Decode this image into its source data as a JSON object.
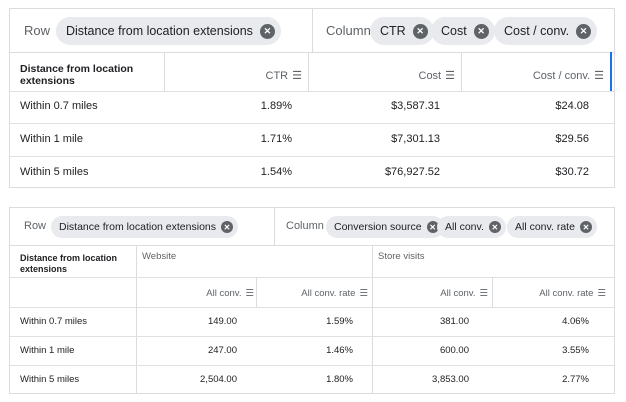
{
  "top": {
    "row_label": "Row",
    "row_chip": "Distance from location extensions",
    "column_label": "Column",
    "column_chips": [
      "CTR",
      "Cost",
      "Cost / conv."
    ],
    "chip_close_glyph": "✕",
    "headers": {
      "dimension": "Distance from location extensions",
      "ctr": "CTR",
      "cost": "Cost",
      "cost_per_conv": "Cost / conv."
    },
    "filter_glyph": "☰",
    "rows": [
      {
        "label": "Within 0.7 miles",
        "ctr": "1.89%",
        "cost": "$3,587.31",
        "cost_per_conv": "$24.08"
      },
      {
        "label": "Within 1 mile",
        "ctr": "1.71%",
        "cost": "$7,301.13",
        "cost_per_conv": "$29.56"
      },
      {
        "label": "Within 5 miles",
        "ctr": "1.54%",
        "cost": "$76,927.52",
        "cost_per_conv": "$30.72"
      }
    ]
  },
  "bottom": {
    "row_label": "Row",
    "row_chip": "Distance from location extensions",
    "column_label": "Column",
    "column_chips": [
      "Conversion source",
      "All conv.",
      "All conv. rate"
    ],
    "chip_close_glyph": "✕",
    "headers": {
      "dimension": "Distance from location extensions",
      "group_website": "Website",
      "group_store_visits": "Store visits",
      "all_conv": "All conv.",
      "all_conv_rate": "All conv. rate"
    },
    "filter_glyph": "☰",
    "rows": [
      {
        "label": "Within 0.7 miles",
        "web_conv": "149.00",
        "web_rate": "1.59%",
        "store_conv": "381.00",
        "store_rate": "4.06%"
      },
      {
        "label": "Within 1 mile",
        "web_conv": "247.00",
        "web_rate": "1.46%",
        "store_conv": "600.00",
        "store_rate": "3.55%"
      },
      {
        "label": "Within 5 miles",
        "web_conv": "2,504.00",
        "web_rate": "1.80%",
        "store_conv": "3,853.00",
        "store_rate": "2.77%"
      }
    ]
  },
  "colors": {
    "chip_bg": "#e8eaed",
    "chip_close": "#5f6368",
    "border": "#dadce0",
    "text": "#202124",
    "muted": "#5f6368",
    "active_column_border": "#1a73e8"
  }
}
